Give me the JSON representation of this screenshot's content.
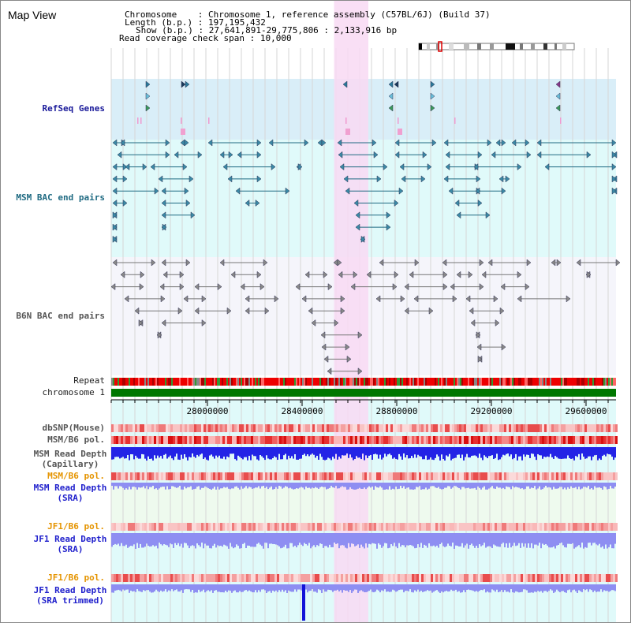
{
  "title": "Map View",
  "header": {
    "chromosome_key": "Chromosome",
    "chromosome_value": "Chromosome 1, reference assembly (C57BL/6J) (Build 37)",
    "length_key": "Length (b.p.)",
    "length_value": "197,195,432",
    "show_key": "Show (b.p.)",
    "show_value": "27,641,891-29,775,806 : 2,133,916 bp",
    "span_key": "Read coverage check span",
    "span_value": "10,000"
  },
  "tracks": {
    "refseq": "RefSeq Genes",
    "msm_bac": "MSM BAC end pairs",
    "b6n_bac": "B6N BAC end pairs",
    "repeat": "Repeat",
    "chromosome": "chromosome 1",
    "dbsnp": "dbSNP(Mouse)",
    "msm_b6_pol": "MSM/B6 pol.",
    "msm_depth_cap_1": "MSM Read Depth",
    "msm_depth_cap_2": "(Capillary)",
    "msm_b6_pol_2": "MSM/B6 pol.",
    "msm_depth_sra_1": "MSM Read Depth",
    "msm_depth_sra_2": "(SRA)",
    "jf1_b6_pol": "JF1/B6 pol.",
    "jf1_depth_sra_1": "JF1 Read Depth",
    "jf1_depth_sra_2": "(SRA)",
    "jf1_b6_pol_2": "JF1/B6 pol.",
    "jf1_depth_trim_1": "JF1 Read Depth",
    "jf1_depth_trim_2": "(SRA trimmed)"
  },
  "axis": {
    "ticks": [
      "28000000",
      "28400000",
      "28800000",
      "29200000",
      "29600000"
    ]
  },
  "highlight_region": [
    28535000,
    28680000
  ],
  "colors": {
    "refseq_bg": "#d9eef8",
    "msm_bg": "#e0fafa",
    "b6n_bg": "#f5f5fb",
    "highlight": "#f8d9f3",
    "chromosome_bar": "#007700",
    "depth_blue": "#2323e6",
    "depth_light": "#8e8ef2"
  }
}
